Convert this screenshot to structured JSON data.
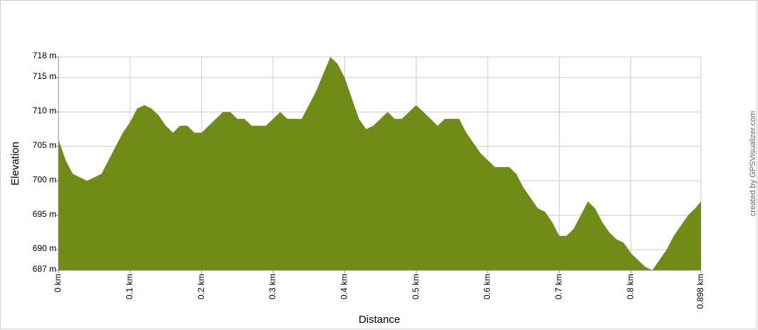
{
  "chart_data": {
    "type": "area",
    "x_label": "Distance",
    "y_label": "Elevation",
    "credit": "created by GPSVisualizer.com",
    "color": "#718c16",
    "grid": true,
    "x": [
      0,
      0.01,
      0.02,
      0.03,
      0.04,
      0.05,
      0.06,
      0.07,
      0.08,
      0.09,
      0.1,
      0.11,
      0.12,
      0.13,
      0.14,
      0.15,
      0.16,
      0.17,
      0.18,
      0.19,
      0.2,
      0.21,
      0.22,
      0.23,
      0.24,
      0.25,
      0.26,
      0.27,
      0.28,
      0.29,
      0.3,
      0.31,
      0.32,
      0.33,
      0.34,
      0.35,
      0.36,
      0.37,
      0.38,
      0.39,
      0.4,
      0.41,
      0.42,
      0.43,
      0.44,
      0.45,
      0.46,
      0.47,
      0.48,
      0.49,
      0.5,
      0.51,
      0.52,
      0.53,
      0.54,
      0.55,
      0.56,
      0.57,
      0.58,
      0.59,
      0.6,
      0.61,
      0.62,
      0.63,
      0.64,
      0.65,
      0.66,
      0.67,
      0.68,
      0.69,
      0.7,
      0.71,
      0.72,
      0.73,
      0.74,
      0.75,
      0.76,
      0.77,
      0.78,
      0.79,
      0.8,
      0.81,
      0.82,
      0.83,
      0.84,
      0.85,
      0.86,
      0.87,
      0.88,
      0.89,
      0.898
    ],
    "values": [
      706,
      703,
      701,
      700.5,
      700,
      700.5,
      701,
      703,
      705,
      707,
      708.5,
      710.5,
      711,
      710.5,
      709.5,
      708,
      707,
      708,
      708,
      707,
      707,
      708,
      709,
      710,
      710,
      709,
      709,
      708,
      708,
      708,
      709,
      710,
      709,
      709,
      709,
      711,
      713,
      715.5,
      718,
      717,
      715,
      712,
      709,
      707.5,
      708,
      709,
      710,
      709,
      709,
      710,
      711,
      710,
      709,
      708,
      709,
      709,
      709,
      707,
      705.5,
      704,
      703,
      702,
      702,
      702,
      701,
      699,
      697.5,
      696,
      695.5,
      694,
      692,
      692,
      693,
      695,
      697,
      696,
      694,
      692.5,
      691.5,
      691,
      689.5,
      688.5,
      687.5,
      687,
      688.5,
      690,
      692,
      693.5,
      695,
      696,
      697
    ],
    "xlim": [
      0,
      0.898
    ],
    "xticks": [
      {
        "value": 0,
        "label": "0 km"
      },
      {
        "value": 0.1,
        "label": "0.1 km"
      },
      {
        "value": 0.2,
        "label": "0.2 km"
      },
      {
        "value": 0.3,
        "label": "0.3 km"
      },
      {
        "value": 0.4,
        "label": "0.4 km"
      },
      {
        "value": 0.5,
        "label": "0.5 km"
      },
      {
        "value": 0.6,
        "label": "0.6 km"
      },
      {
        "value": 0.7,
        "label": "0.7 km"
      },
      {
        "value": 0.8,
        "label": "0.8 km"
      },
      {
        "value": 0.898,
        "label": "0.898 km"
      }
    ],
    "ylim": [
      687,
      718
    ],
    "yticks": [
      {
        "value": 687,
        "label": "687 m"
      },
      {
        "value": 690,
        "label": "690 m"
      },
      {
        "value": 695,
        "label": "695 m"
      },
      {
        "value": 700,
        "label": "700 m"
      },
      {
        "value": 705,
        "label": "705 m"
      },
      {
        "value": 710,
        "label": "710 m"
      },
      {
        "value": 715,
        "label": "715 m"
      },
      {
        "value": 718,
        "label": "718 m"
      }
    ]
  }
}
